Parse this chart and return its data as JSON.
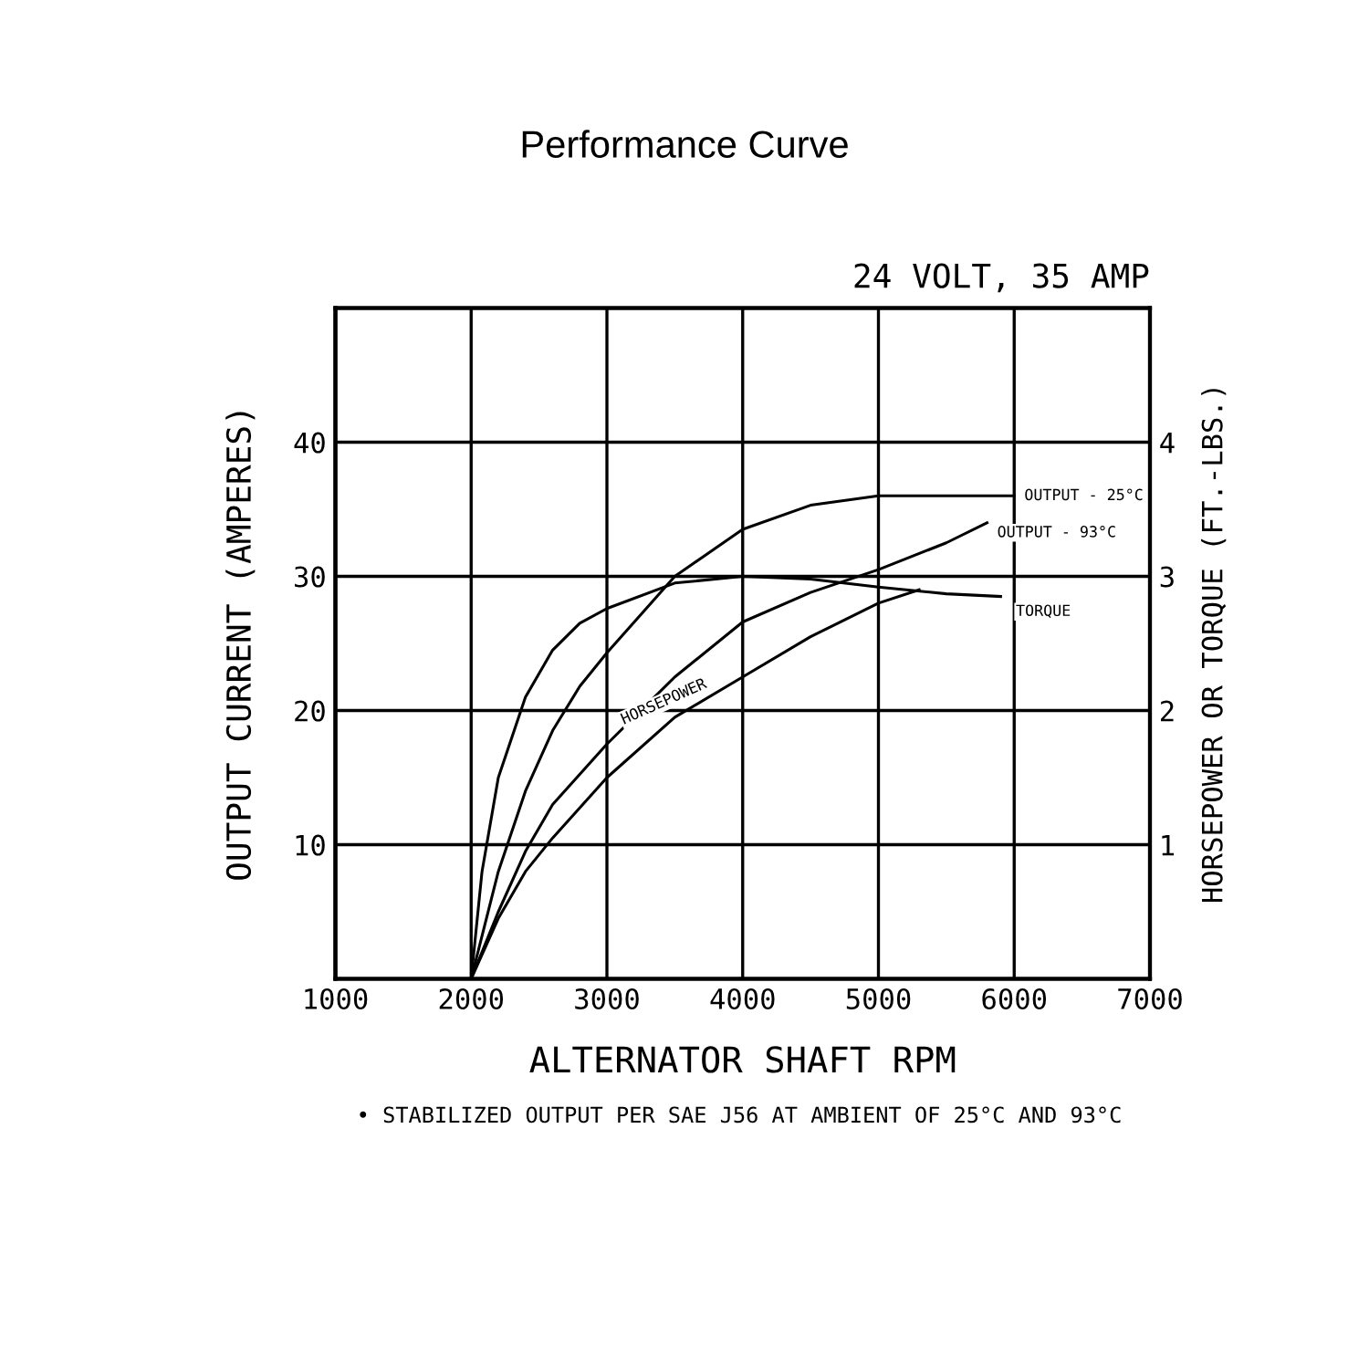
{
  "chart_data": {
    "type": "line",
    "title": "Performance Curve",
    "subtitle": "24 VOLT, 35 AMP",
    "xlabel": "ALTERNATOR SHAFT RPM",
    "ylabel": "OUTPUT CURRENT (AMPERES)",
    "y2label": "HORSEPOWER OR TORQUE (FT.-LBS.)",
    "annotations": [
      "• STABILIZED OUTPUT PER SAE J56 AT AMBIENT OF 25°C AND 93°C"
    ],
    "xlim": [
      1000,
      7000
    ],
    "xticks": [
      1000,
      2000,
      3000,
      4000,
      5000,
      6000,
      7000
    ],
    "ylim": [
      0,
      50
    ],
    "yticks": [
      10,
      20,
      30,
      40
    ],
    "y2lim": [
      0,
      5
    ],
    "y2ticks": [
      1,
      2,
      3,
      4
    ],
    "grid": true,
    "marker": "none",
    "line_style": "solid",
    "legend": false,
    "series": [
      {
        "name": "OUTPUT - 25°C",
        "color": "#000000",
        "x": [
          2000,
          2200,
          2400,
          2600,
          2800,
          3000,
          3500,
          4000,
          4500,
          5000,
          5500,
          6000
        ],
        "values": [
          0,
          8,
          14,
          18.5,
          21.8,
          24.3,
          30,
          33.5,
          35.3,
          36,
          36,
          36
        ]
      },
      {
        "name": "OUTPUT - 93°C",
        "color": "#000000",
        "x": [
          2000,
          2200,
          2400,
          2600,
          3000,
          3500,
          4000,
          4500,
          5000,
          5500,
          5800
        ],
        "values": [
          0,
          5,
          9.5,
          13,
          17.5,
          22.5,
          26.6,
          28.8,
          30.5,
          32.5,
          34
        ]
      },
      {
        "name": "TORQUE",
        "color": "#000000",
        "axis": "y2",
        "x": [
          2000,
          2080,
          2200,
          2400,
          2600,
          2800,
          3000,
          3500,
          4000,
          4500,
          5000,
          5500,
          5900
        ],
        "values": [
          0,
          0.8,
          1.5,
          2.1,
          2.45,
          2.65,
          2.76,
          2.95,
          3.0,
          2.98,
          2.92,
          2.87,
          2.85
        ]
      },
      {
        "name": "HORSEPOWER",
        "color": "#000000",
        "axis": "y2",
        "x": [
          2000,
          2200,
          2400,
          2600,
          3000,
          3500,
          4000,
          4500,
          5000,
          5300
        ],
        "values": [
          0,
          0.45,
          0.8,
          1.05,
          1.5,
          1.95,
          2.25,
          2.55,
          2.8,
          2.9
        ]
      }
    ]
  }
}
